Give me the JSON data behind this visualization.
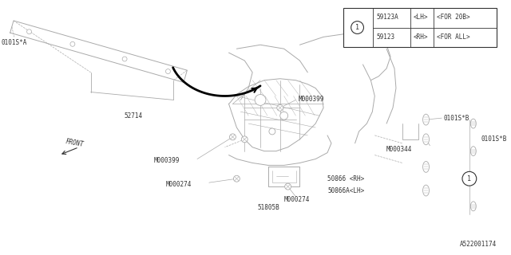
{
  "bg_color": "#ffffff",
  "line_color": "#aaaaaa",
  "dark_color": "#333333",
  "diagram_id": "A522001174",
  "table": {
    "circle_label": "1",
    "rows": [
      {
        "part": "59123",
        "side": "<RH>",
        "note": "<FOR ALL>"
      },
      {
        "part": "59123A",
        "side": "<LH>",
        "note": "<FOR 20B>"
      }
    ]
  },
  "font_size": 5.5,
  "font_family": "monospace",
  "fig_w": 6.4,
  "fig_h": 3.2,
  "dpi": 100
}
